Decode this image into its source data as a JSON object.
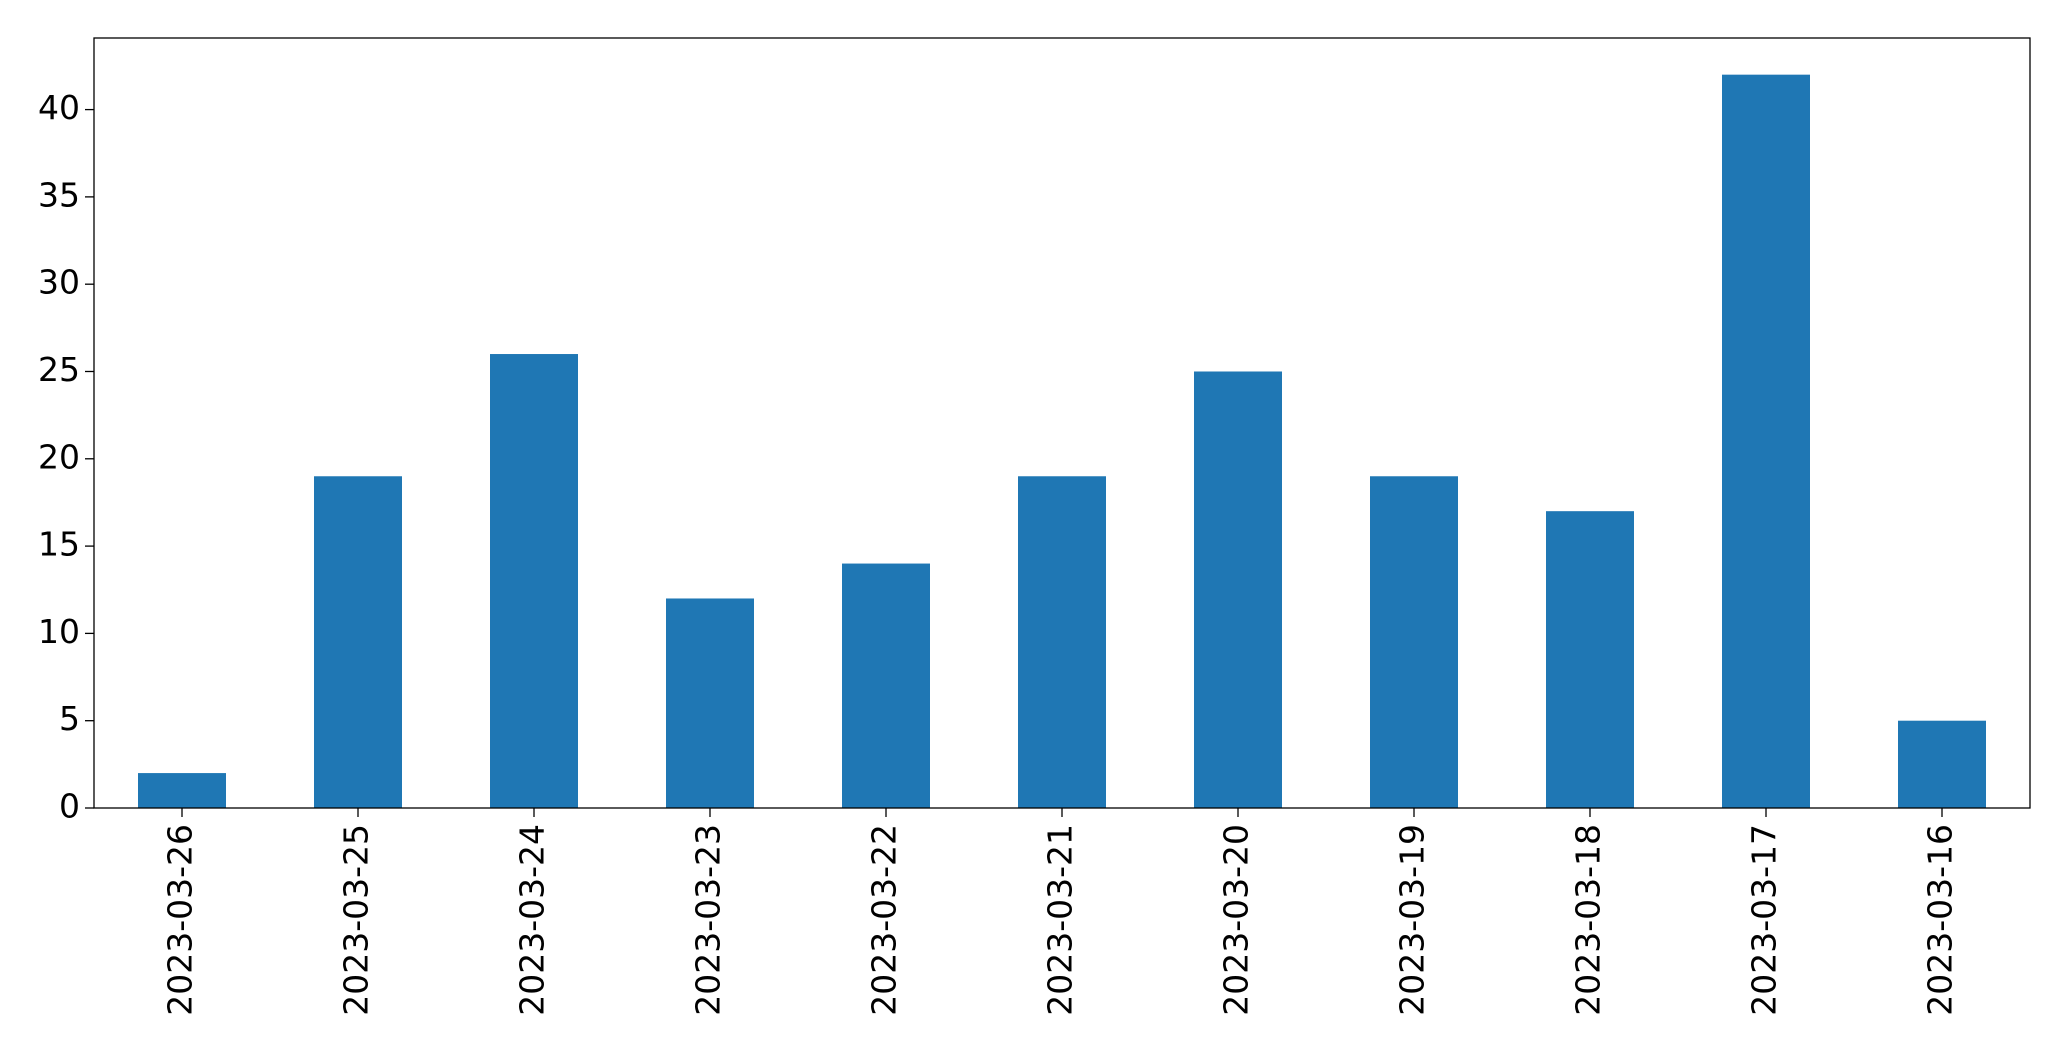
{
  "chart_data": {
    "type": "bar",
    "categories": [
      "2023-03-26",
      "2023-03-25",
      "2023-03-24",
      "2023-03-23",
      "2023-03-22",
      "2023-03-21",
      "2023-03-20",
      "2023-03-19",
      "2023-03-18",
      "2023-03-17",
      "2023-03-16"
    ],
    "values": [
      2,
      19,
      26,
      12,
      14,
      19,
      25,
      19,
      17,
      42,
      5
    ],
    "color": "#1f77b4",
    "ylim": [
      0,
      44.1
    ],
    "yticks": [
      0,
      5,
      10,
      15,
      20,
      25,
      30,
      35,
      40
    ],
    "grid": false
  }
}
